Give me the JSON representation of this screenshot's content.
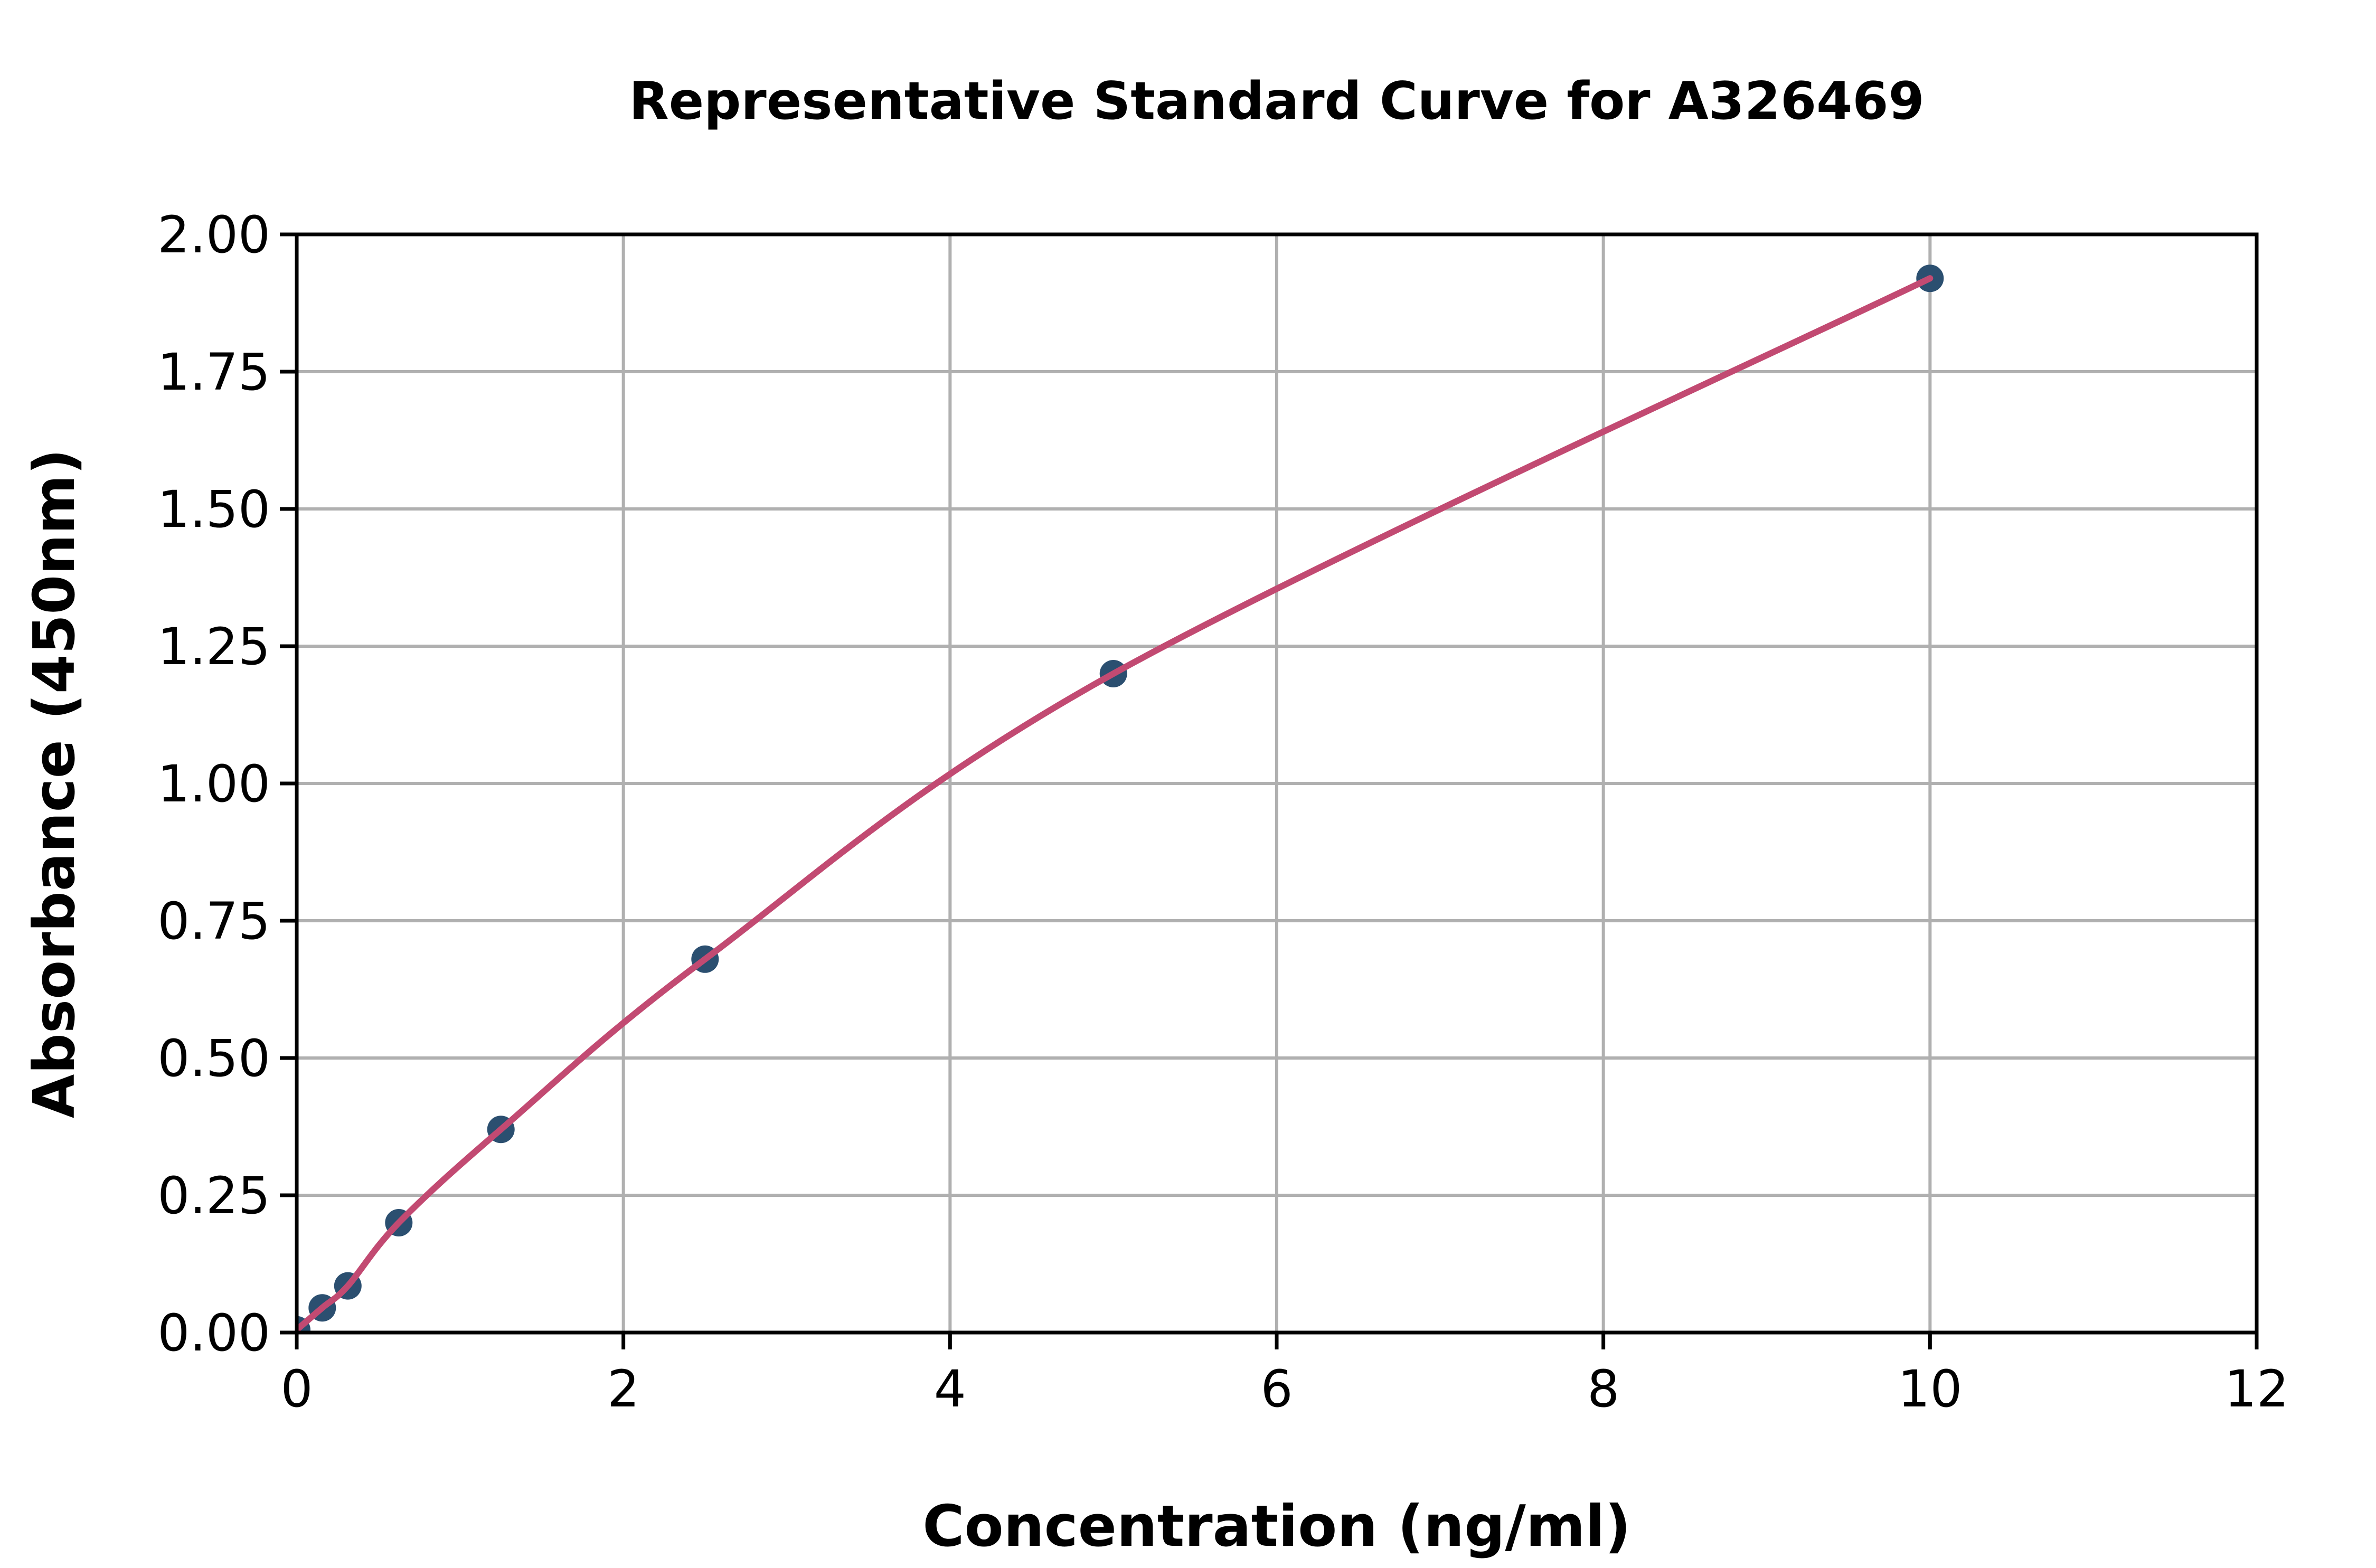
{
  "figure": {
    "background": "#ffffff"
  },
  "chart_data": {
    "type": "line",
    "title": "Representative Standard Curve for A326469",
    "xlabel": "Concentration (ng/ml)",
    "ylabel": "Absorbance (450nm)",
    "x": [
      0,
      0.156,
      0.313,
      0.625,
      1.25,
      2.5,
      5,
      10
    ],
    "y": [
      0.005,
      0.045,
      0.085,
      0.2,
      0.37,
      0.68,
      1.2,
      1.92
    ],
    "xlim": [
      0,
      12
    ],
    "ylim": [
      0,
      2
    ],
    "xticks": {
      "values": [
        0,
        2,
        4,
        6,
        8,
        10,
        12
      ],
      "labels": [
        "0",
        "2",
        "4",
        "6",
        "8",
        "10",
        "12"
      ]
    },
    "yticks": {
      "values": [
        0,
        0.25,
        0.5,
        0.75,
        1,
        1.25,
        1.5,
        1.75,
        2
      ],
      "labels": [
        "0.00",
        "0.25",
        "0.50",
        "0.75",
        "1.00",
        "1.25",
        "1.50",
        "1.75",
        "2.00"
      ]
    },
    "grid": true,
    "legend": "none",
    "style": {
      "line_color": "#c24a72",
      "marker_color": "#2b4f70",
      "grid_color": "#b0b0b0",
      "spine_color": "#000000",
      "text_color": "#000000",
      "marker_radius": 26,
      "line_width": 12
    }
  }
}
